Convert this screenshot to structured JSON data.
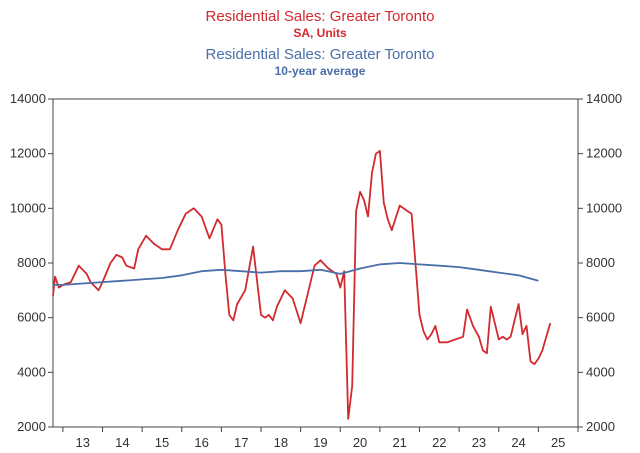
{
  "chart_data": {
    "type": "line",
    "title": "",
    "xlabel": "",
    "ylabel": "",
    "ylim": [
      2000,
      14000
    ],
    "xlim": [
      2012.75,
      2026.0
    ],
    "grid": false,
    "legend_position": "top-center",
    "y_ticks": [
      2000,
      4000,
      6000,
      8000,
      10000,
      12000,
      14000
    ],
    "y_tick_labels": [
      "2000",
      "4000",
      "6000",
      "8000",
      "10000",
      "12000",
      "14000"
    ],
    "x_tick_labels": [
      {
        "label": "13",
        "x": 2013.5
      },
      {
        "label": "14",
        "x": 2014.5
      },
      {
        "label": "15",
        "x": 2015.5
      },
      {
        "label": "16",
        "x": 2016.5
      },
      {
        "label": "17",
        "x": 2017.5
      },
      {
        "label": "18",
        "x": 2018.5
      },
      {
        "label": "19",
        "x": 2019.5
      },
      {
        "label": "20",
        "x": 2020.5
      },
      {
        "label": "21",
        "x": 2021.5
      },
      {
        "label": "22",
        "x": 2022.5
      },
      {
        "label": "23",
        "x": 2023.5
      },
      {
        "label": "24",
        "x": 2024.5
      },
      {
        "label": "25",
        "x": 2025.5
      }
    ],
    "series": [
      {
        "name": "Residential Sales: Greater Toronto",
        "subtitle": "SA, Units",
        "color": "#d12a2f",
        "x": [
          2012.75,
          2012.8,
          2012.9,
          2013.0,
          2013.2,
          2013.4,
          2013.6,
          2013.7,
          2013.9,
          2014.0,
          2014.2,
          2014.35,
          2014.5,
          2014.6,
          2014.8,
          2014.9,
          2015.1,
          2015.3,
          2015.5,
          2015.7,
          2015.9,
          2016.1,
          2016.3,
          2016.5,
          2016.7,
          2016.9,
          2017.0,
          2017.1,
          2017.2,
          2017.3,
          2017.4,
          2017.6,
          2017.8,
          2018.0,
          2018.1,
          2018.2,
          2018.3,
          2018.4,
          2018.6,
          2018.8,
          2019.0,
          2019.2,
          2019.35,
          2019.5,
          2019.7,
          2019.9,
          2020.0,
          2020.1,
          2020.2,
          2020.3,
          2020.4,
          2020.5,
          2020.6,
          2020.7,
          2020.8,
          2020.9,
          2021.0,
          2021.1,
          2021.2,
          2021.3,
          2021.5,
          2021.7,
          2021.8,
          2022.0,
          2022.1,
          2022.2,
          2022.3,
          2022.4,
          2022.5,
          2022.7,
          2022.9,
          2023.1,
          2023.2,
          2023.35,
          2023.5,
          2023.6,
          2023.7,
          2023.8,
          2024.0,
          2024.1,
          2024.2,
          2024.3,
          2024.5,
          2024.6,
          2024.7,
          2024.8,
          2024.9,
          2025.0,
          2025.1,
          2025.2,
          2025.3
        ],
        "values": [
          6800,
          7500,
          7100,
          7200,
          7300,
          7900,
          7600,
          7300,
          7000,
          7300,
          8000,
          8300,
          8200,
          7900,
          7800,
          8500,
          9000,
          8700,
          8500,
          8500,
          9200,
          9800,
          10000,
          9700,
          8900,
          9600,
          9400,
          7600,
          6100,
          5900,
          6500,
          7000,
          8600,
          6100,
          6000,
          6100,
          5900,
          6400,
          7000,
          6700,
          5800,
          7000,
          7900,
          8100,
          7800,
          7600,
          7100,
          7700,
          2300,
          3500,
          9900,
          10600,
          10300,
          9700,
          11300,
          12000,
          12100,
          10200,
          9600,
          9200,
          10100,
          9900,
          9800,
          6100,
          5500,
          5200,
          5400,
          5700,
          5100,
          5100,
          5200,
          5300,
          6300,
          5700,
          5300,
          4800,
          4700,
          6400,
          5200,
          5300,
          5200,
          5300,
          6500,
          5400,
          5700,
          4400,
          4300,
          4500,
          4800,
          5300,
          5800
        ]
      },
      {
        "name": "Residential Sales: Greater Toronto",
        "subtitle": "10-year average",
        "color": "#4a6fa8",
        "x": [
          2012.75,
          2013.0,
          2013.5,
          2014.0,
          2014.5,
          2015.0,
          2015.5,
          2016.0,
          2016.5,
          2017.0,
          2017.5,
          2018.0,
          2018.5,
          2019.0,
          2019.5,
          2020.0,
          2020.5,
          2021.0,
          2021.5,
          2022.0,
          2022.5,
          2023.0,
          2023.5,
          2024.0,
          2024.5,
          2025.0
        ],
        "values": [
          7200,
          7200,
          7250,
          7300,
          7350,
          7400,
          7450,
          7550,
          7700,
          7750,
          7700,
          7650,
          7700,
          7700,
          7750,
          7600,
          7800,
          7950,
          8000,
          7950,
          7900,
          7850,
          7750,
          7650,
          7550,
          7350
        ]
      }
    ]
  }
}
